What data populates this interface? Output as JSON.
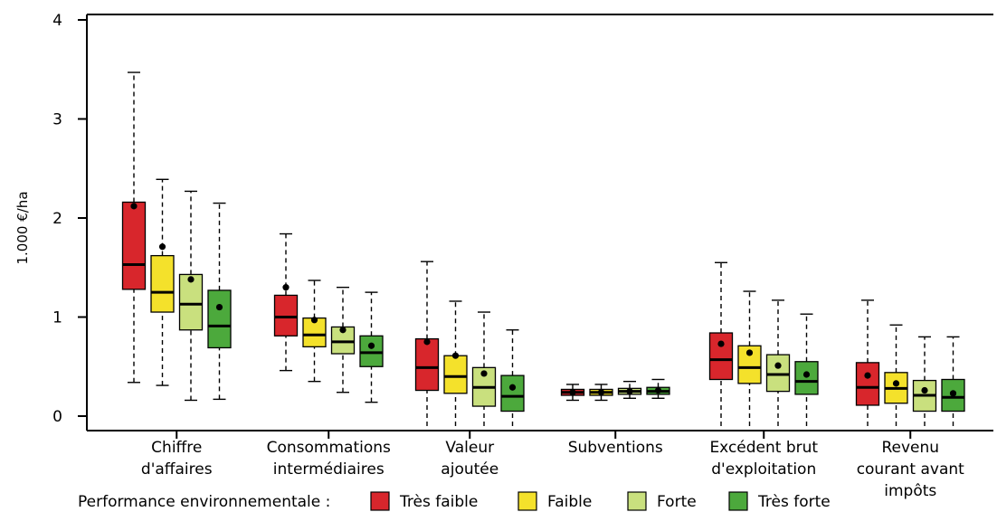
{
  "chart_data": {
    "type": "boxplot",
    "ylabel": "1.000 €/ha",
    "ylim": [
      0,
      4
    ],
    "yticks": [
      "0",
      "1",
      "2",
      "3",
      "4"
    ],
    "grid": false,
    "legend": {
      "position": "bottom",
      "title": "Performance environnementale :"
    },
    "categories": [
      [
        "Chiffre",
        "d'affaires"
      ],
      [
        "Consommations",
        "intermédiaires"
      ],
      [
        "Valeur",
        "ajoutée"
      ],
      [
        "Subventions"
      ],
      [
        "Excédent brut",
        "d'exploitation"
      ],
      [
        "Revenu",
        "courant avant",
        "impôts"
      ]
    ],
    "series": [
      {
        "name": "Très faible",
        "color": "#d8262c",
        "boxes": [
          {
            "whislo": 0.34,
            "q1": 1.28,
            "med": 1.53,
            "q3": 2.16,
            "whishi": 3.47,
            "mean": 2.12
          },
          {
            "whislo": 0.46,
            "q1": 0.81,
            "med": 1.0,
            "q3": 1.22,
            "whishi": 1.84,
            "mean": 1.3
          },
          {
            "whislo": -0.1,
            "q1": 0.26,
            "med": 0.49,
            "q3": 0.78,
            "whishi": 1.56,
            "mean": 0.75
          },
          {
            "whislo": 0.16,
            "q1": 0.21,
            "med": 0.24,
            "q3": 0.27,
            "whishi": 0.32,
            "mean": 0.24
          },
          {
            "whislo": -0.1,
            "q1": 0.37,
            "med": 0.57,
            "q3": 0.84,
            "whishi": 1.55,
            "mean": 0.73
          },
          {
            "whislo": -0.1,
            "q1": 0.11,
            "med": 0.29,
            "q3": 0.54,
            "whishi": 1.17,
            "mean": 0.41
          }
        ]
      },
      {
        "name": "Faible",
        "color": "#f4e12b",
        "boxes": [
          {
            "whislo": 0.31,
            "q1": 1.05,
            "med": 1.25,
            "q3": 1.62,
            "whishi": 2.39,
            "mean": 1.71
          },
          {
            "whislo": 0.35,
            "q1": 0.7,
            "med": 0.82,
            "q3": 0.99,
            "whishi": 1.37,
            "mean": 0.97
          },
          {
            "whislo": -0.1,
            "q1": 0.23,
            "med": 0.4,
            "q3": 0.61,
            "whishi": 1.16,
            "mean": 0.61
          },
          {
            "whislo": 0.16,
            "q1": 0.21,
            "med": 0.24,
            "q3": 0.27,
            "whishi": 0.32,
            "mean": 0.24
          },
          {
            "whislo": -0.1,
            "q1": 0.33,
            "med": 0.49,
            "q3": 0.71,
            "whishi": 1.26,
            "mean": 0.64
          },
          {
            "whislo": -0.1,
            "q1": 0.13,
            "med": 0.28,
            "q3": 0.44,
            "whishi": 0.92,
            "mean": 0.33
          }
        ]
      },
      {
        "name": "Forte",
        "color": "#c9e07e",
        "boxes": [
          {
            "whislo": 0.16,
            "q1": 0.87,
            "med": 1.13,
            "q3": 1.43,
            "whishi": 2.27,
            "mean": 1.38
          },
          {
            "whislo": 0.24,
            "q1": 0.63,
            "med": 0.75,
            "q3": 0.9,
            "whishi": 1.3,
            "mean": 0.87
          },
          {
            "whislo": -0.1,
            "q1": 0.1,
            "med": 0.29,
            "q3": 0.49,
            "whishi": 1.05,
            "mean": 0.43
          },
          {
            "whislo": 0.18,
            "q1": 0.22,
            "med": 0.25,
            "q3": 0.28,
            "whishi": 0.35,
            "mean": 0.25
          },
          {
            "whislo": -0.1,
            "q1": 0.25,
            "med": 0.42,
            "q3": 0.62,
            "whishi": 1.17,
            "mean": 0.51
          },
          {
            "whislo": -0.1,
            "q1": 0.05,
            "med": 0.21,
            "q3": 0.36,
            "whishi": 0.8,
            "mean": 0.26
          }
        ]
      },
      {
        "name": "Très forte",
        "color": "#4ca93c",
        "boxes": [
          {
            "whislo": 0.17,
            "q1": 0.69,
            "med": 0.91,
            "q3": 1.27,
            "whishi": 2.15,
            "mean": 1.1
          },
          {
            "whislo": 0.14,
            "q1": 0.5,
            "med": 0.64,
            "q3": 0.81,
            "whishi": 1.25,
            "mean": 0.71
          },
          {
            "whislo": -0.1,
            "q1": 0.05,
            "med": 0.2,
            "q3": 0.41,
            "whishi": 0.87,
            "mean": 0.29
          },
          {
            "whislo": 0.18,
            "q1": 0.22,
            "med": 0.25,
            "q3": 0.29,
            "whishi": 0.37,
            "mean": 0.26
          },
          {
            "whislo": -0.1,
            "q1": 0.22,
            "med": 0.35,
            "q3": 0.55,
            "whishi": 1.03,
            "mean": 0.42
          },
          {
            "whislo": -0.1,
            "q1": 0.05,
            "med": 0.19,
            "q3": 0.37,
            "whishi": 0.8,
            "mean": 0.23
          }
        ]
      }
    ]
  }
}
